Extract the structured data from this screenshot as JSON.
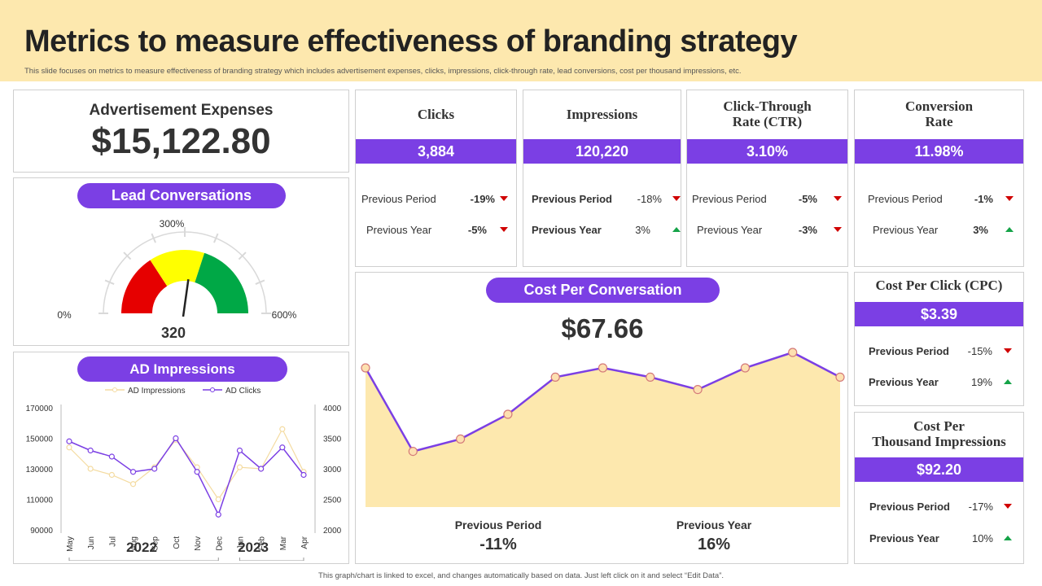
{
  "header": {
    "title": "Metrics to measure effectiveness of branding strategy",
    "subtitle": "This slide focuses on metrics to measure effectiveness of branding strategy which includes advertisement expenses, clicks, impressions, click-through rate, lead conversions, cost per thousand impressions, etc."
  },
  "ad_expenses": {
    "label": "Advertisement Expenses",
    "value": "$15,122.80"
  },
  "lead": {
    "title": "Lead Conversations",
    "min": "0%",
    "mid": "300%",
    "max": "600%",
    "value": "320"
  },
  "ad_impressions": {
    "title": "AD Impressions",
    "legend_impressions": "AD Impressions",
    "legend_clicks": "AD Clicks",
    "year1": "2022",
    "year2": "2023"
  },
  "metrics": [
    {
      "title": "Clicks",
      "value": "3,884",
      "rows": [
        {
          "label": "Previous Period",
          "value": "-19%",
          "dir": "down"
        },
        {
          "label": "Previous Year",
          "value": "-5%",
          "dir": "down"
        }
      ]
    },
    {
      "title": "Impressions",
      "value": "120,220",
      "rows": [
        {
          "label": "Previous Period",
          "value": "-18%",
          "dir": "down"
        },
        {
          "label": "Previous Year",
          "value": "3%",
          "dir": "up"
        }
      ]
    },
    {
      "title": "Click-Through",
      "title2": "Rate (CTR)",
      "value": "3.10%",
      "rows": [
        {
          "label": "Previous Period",
          "value": "-5%",
          "dir": "down"
        },
        {
          "label": "Previous Year",
          "value": "-3%",
          "dir": "down"
        }
      ]
    },
    {
      "title": "Conversion",
      "title2": "Rate",
      "value": "11.98%",
      "rows": [
        {
          "label": "Previous Period",
          "value": "-1%",
          "dir": "down"
        },
        {
          "label": "Previous Year",
          "value": "3%",
          "dir": "up"
        }
      ]
    }
  ],
  "cpc": {
    "title": "Cost Per Click (CPC)",
    "value": "$3.39",
    "rows": [
      {
        "label": "Previous Period",
        "value": "-15%",
        "dir": "down"
      },
      {
        "label": "Previous Year",
        "value": "19%",
        "dir": "up"
      }
    ]
  },
  "cpm": {
    "title": "Cost Per",
    "title2": "Thousand Impressions",
    "value": "$92.20",
    "rows": [
      {
        "label": "Previous Period",
        "value": "-17%",
        "dir": "down"
      },
      {
        "label": "Previous Year",
        "value": "10%",
        "dir": "up"
      }
    ]
  },
  "cost_per_conv": {
    "title": "Cost Per Conversation",
    "value": "$67.66",
    "prev_period_label": "Previous Period",
    "prev_period_value": "-11%",
    "prev_year_label": "Previous Year",
    "prev_year_value": "16%"
  },
  "colors": {
    "accent": "#7b3fe4",
    "header_bg": "#fde8ae",
    "area_fill": "#fde8ae",
    "down": "#d00000",
    "up": "#15a348",
    "gauge_red": "#e60000",
    "gauge_yellow": "#ffff00",
    "gauge_green": "#00a846"
  },
  "chart_data": [
    {
      "type": "gauge",
      "title": "Lead Conversations",
      "min": 0,
      "max": 600,
      "value": 320,
      "tick_labels": [
        "0%",
        "300%",
        "600%"
      ]
    },
    {
      "type": "line",
      "title": "AD Impressions",
      "categories": [
        "May",
        "Jun",
        "Jul",
        "Aug",
        "Sep",
        "Oct",
        "Nov",
        "Dec",
        "Jan",
        "Feb",
        "Mar",
        "Apr"
      ],
      "groups": [
        {
          "label": "2022",
          "span": [
            0,
            7
          ]
        },
        {
          "label": "2023",
          "span": [
            8,
            11
          ]
        }
      ],
      "y_left": {
        "ticks": [
          90000,
          110000,
          130000,
          150000,
          170000
        ],
        "range": [
          90000,
          170000
        ]
      },
      "y_right": {
        "ticks": [
          2000,
          2500,
          3000,
          3500,
          4000
        ],
        "range": [
          2000,
          4000
        ]
      },
      "series": [
        {
          "name": "AD Impressions",
          "axis": "left",
          "values": [
            144000,
            130000,
            126000,
            120000,
            131000,
            149000,
            131000,
            110000,
            131000,
            130000,
            156000,
            128000
          ]
        },
        {
          "name": "AD Clicks",
          "axis": "right",
          "values": [
            3450,
            3300,
            3200,
            2950,
            3000,
            3500,
            2950,
            2250,
            3300,
            3000,
            3350,
            2900
          ]
        }
      ]
    },
    {
      "type": "area",
      "title": "Cost Per Conversation",
      "x": [
        1,
        2,
        3,
        4,
        5,
        6,
        7,
        8,
        9,
        10,
        11
      ],
      "values": [
        55,
        28,
        32,
        40,
        52,
        55,
        52,
        48,
        55,
        60,
        52
      ],
      "ylim": [
        10,
        70
      ]
    }
  ]
}
